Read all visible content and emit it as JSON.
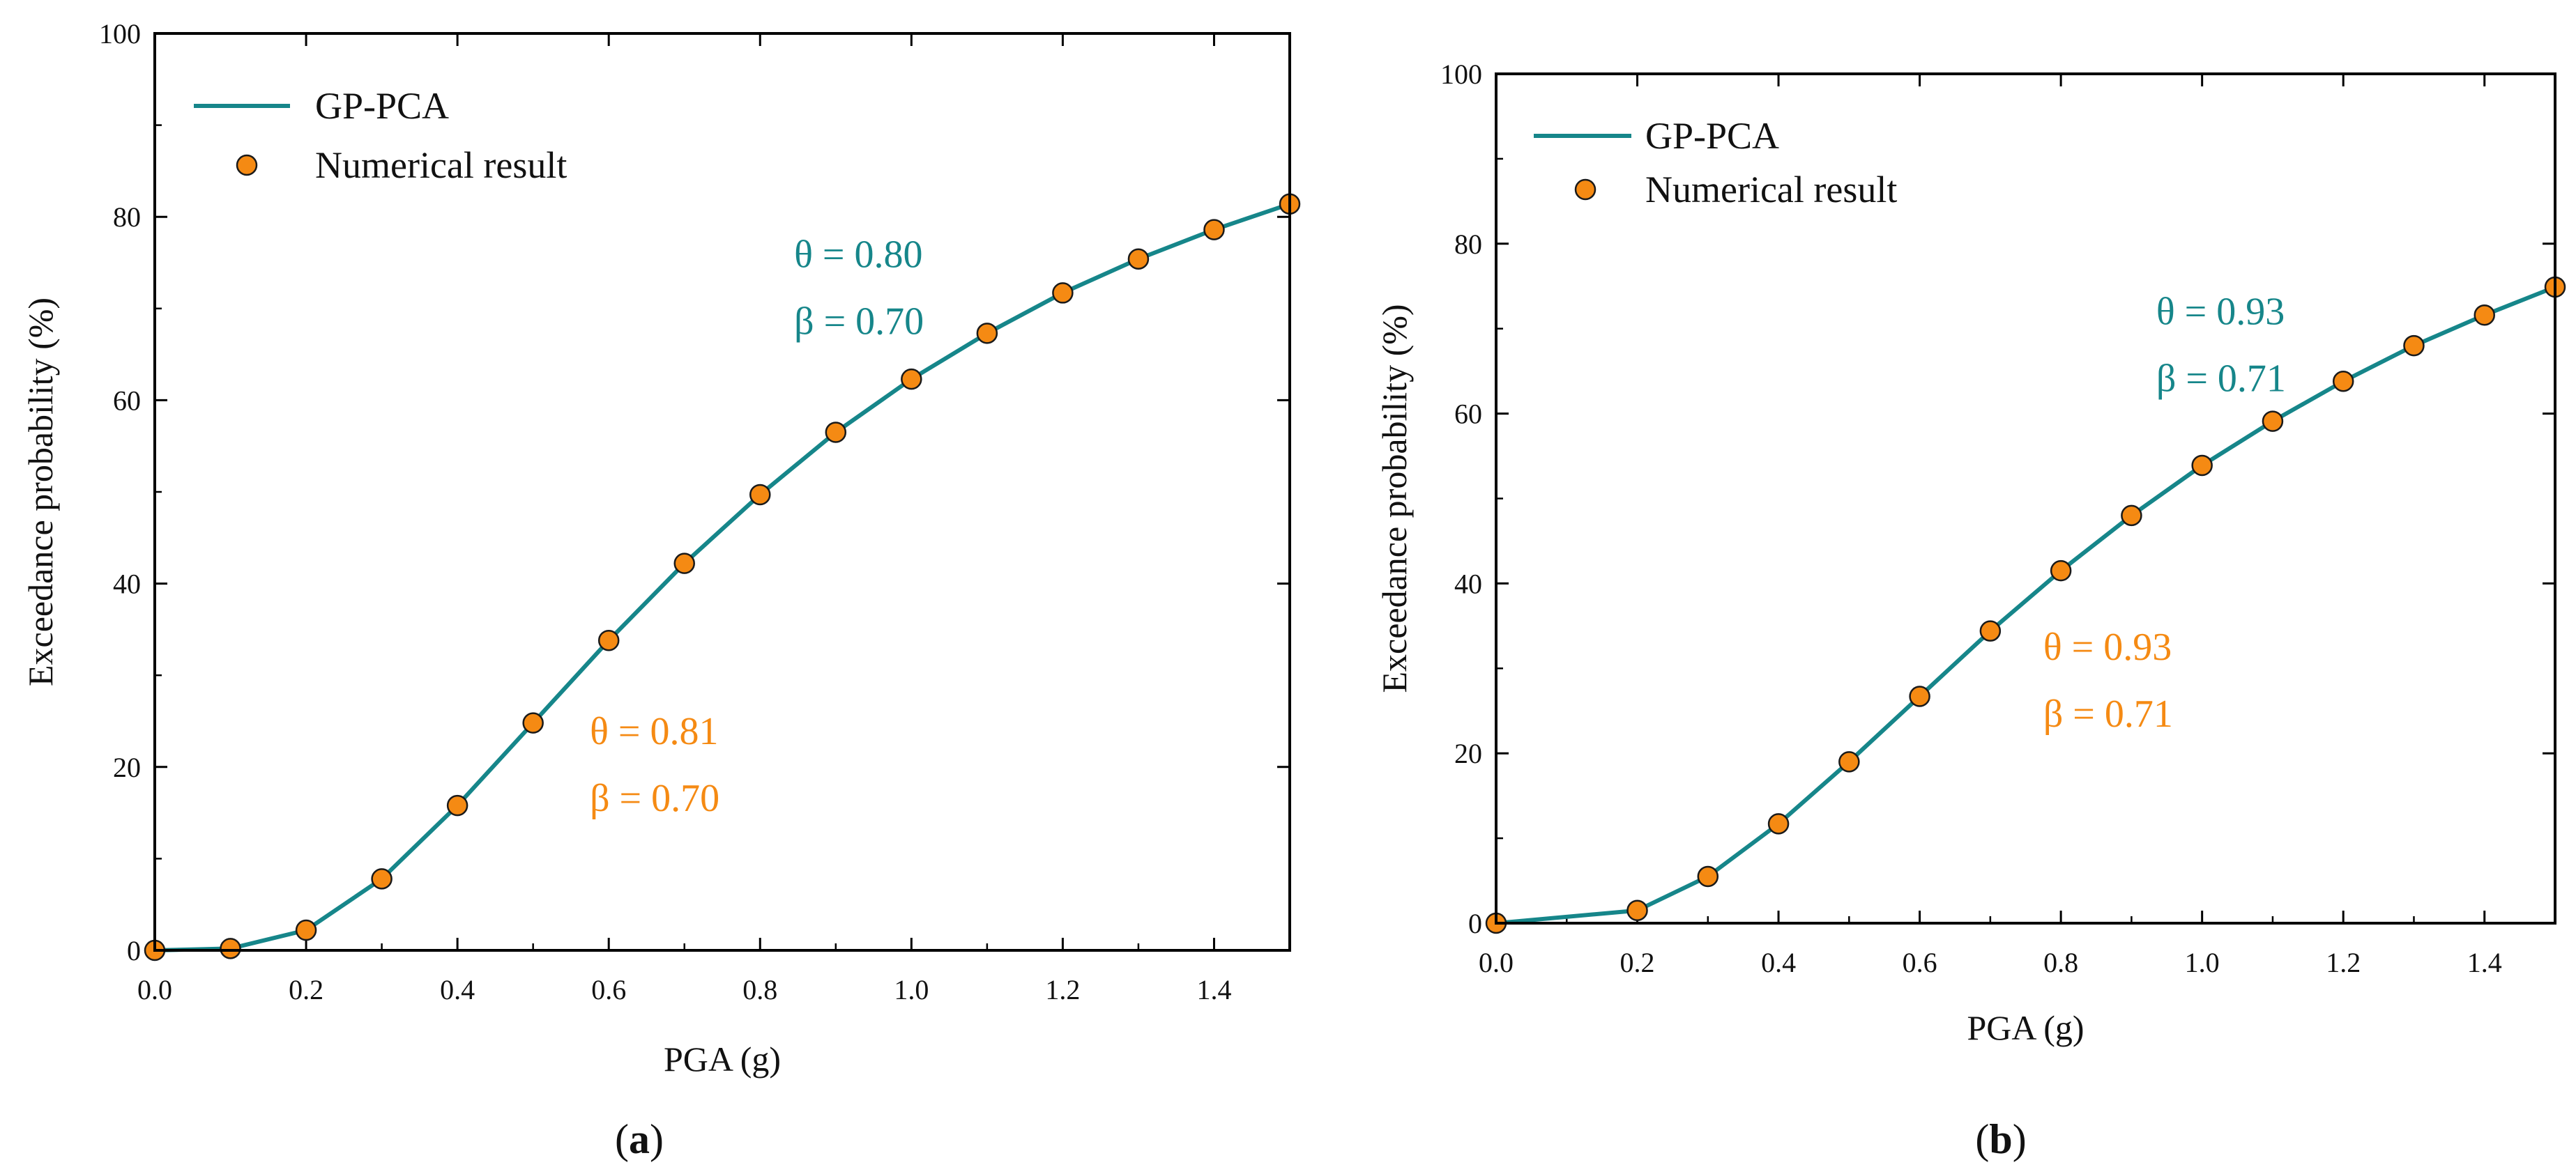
{
  "colors": {
    "line": "#16868a",
    "marker": "#f58a13",
    "marker_edge": "#1a1a1a",
    "axis": "#000000"
  },
  "chart_data": [
    {
      "type": "line",
      "panel_label": "a",
      "xlabel": "PGA (g)",
      "ylabel": "Exceedance probability (%)",
      "xlim": [
        0,
        1.5
      ],
      "ylim": [
        0,
        100
      ],
      "x_ticks": [
        "0.0",
        "0.2",
        "0.4",
        "0.6",
        "0.8",
        "1.0",
        "1.2",
        "1.4"
      ],
      "y_ticks": [
        "0",
        "20",
        "40",
        "60",
        "80",
        "100"
      ],
      "legend": {
        "position": "top-left",
        "line_label": "GP-PCA",
        "marker_label": "Numerical result"
      },
      "series": [
        {
          "name": "GP-PCA",
          "kind": "line",
          "x": [
            0,
            0.1,
            0.2,
            0.3,
            0.4,
            0.5,
            0.6,
            0.7,
            0.8,
            0.9,
            1.0,
            1.1,
            1.2,
            1.3,
            1.4,
            1.5
          ],
          "y": [
            0,
            0.2,
            2.2,
            7.8,
            15.8,
            24.8,
            33.8,
            42.2,
            49.7,
            56.5,
            62.3,
            67.3,
            71.7,
            75.4,
            78.6,
            81.4
          ]
        },
        {
          "name": "Numerical result",
          "kind": "scatter",
          "x": [
            0,
            0.1,
            0.2,
            0.3,
            0.4,
            0.5,
            0.6,
            0.7,
            0.8,
            0.9,
            1.0,
            1.1,
            1.2,
            1.3,
            1.4,
            1.5
          ],
          "y": [
            0,
            0.2,
            2.2,
            7.8,
            15.8,
            24.8,
            33.8,
            42.2,
            49.7,
            56.5,
            62.3,
            67.3,
            71.7,
            75.4,
            78.6,
            81.4
          ]
        }
      ],
      "annotations": [
        {
          "lines": [
            "θ = 0.80",
            "β = 0.70"
          ],
          "x": 0.845,
          "y": 74.5,
          "color_key": "line"
        },
        {
          "lines": [
            "θ = 0.81",
            "β = 0.70"
          ],
          "x": 0.575,
          "y": 22.5,
          "color_key": "marker"
        }
      ]
    },
    {
      "type": "line",
      "panel_label": "b",
      "xlabel": "PGA (g)",
      "ylabel": "Exceedance probability (%)",
      "xlim": [
        0,
        1.5
      ],
      "ylim": [
        0,
        100
      ],
      "x_ticks": [
        "0.0",
        "0.2",
        "0.4",
        "0.6",
        "0.8",
        "1.0",
        "1.2",
        "1.4"
      ],
      "y_ticks": [
        "0",
        "20",
        "40",
        "60",
        "80",
        "100"
      ],
      "legend": {
        "position": "top-left",
        "line_label": "GP-PCA",
        "marker_label": "Numerical result"
      },
      "series": [
        {
          "name": "GP-PCA",
          "kind": "line",
          "x": [
            0,
            0.2,
            0.3,
            0.4,
            0.5,
            0.6,
            0.7,
            0.8,
            0.9,
            1.0,
            1.1,
            1.2,
            1.3,
            1.4,
            1.5
          ],
          "y": [
            0,
            1.5,
            5.5,
            11.7,
            19.0,
            26.7,
            34.4,
            41.5,
            48.0,
            53.9,
            59.1,
            63.8,
            68.0,
            71.6,
            74.9
          ]
        },
        {
          "name": "Numerical result",
          "kind": "scatter",
          "x": [
            0,
            0.2,
            0.3,
            0.4,
            0.5,
            0.6,
            0.7,
            0.8,
            0.9,
            1.0,
            1.1,
            1.2,
            1.3,
            1.4,
            1.5
          ],
          "y": [
            0,
            1.5,
            5.5,
            11.7,
            19.0,
            26.7,
            34.4,
            41.5,
            48.0,
            53.9,
            59.1,
            63.8,
            68.0,
            71.6,
            74.9
          ]
        }
      ],
      "annotations": [
        {
          "lines": [
            "θ = 0.93",
            "β = 0.71"
          ],
          "x": 0.935,
          "y": 70.5,
          "color_key": "line"
        },
        {
          "lines": [
            "θ = 0.93",
            "β = 0.71"
          ],
          "x": 0.775,
          "y": 31.0,
          "color_key": "marker"
        }
      ]
    }
  ]
}
